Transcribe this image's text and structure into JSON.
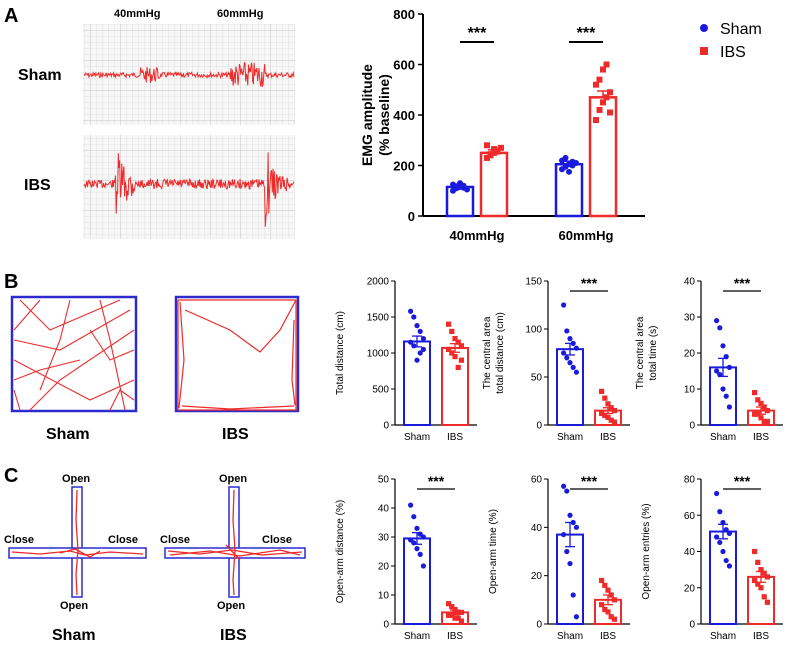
{
  "panels": {
    "a": "A",
    "b": "B",
    "c": "C"
  },
  "emg": {
    "pressure_labels": [
      "40mmHg",
      "60mmHg"
    ],
    "row_labels": [
      "Sham",
      "IBS"
    ]
  },
  "of": {
    "labels": [
      "Sham",
      "IBS"
    ]
  },
  "epm": {
    "arm_open": "Open",
    "arm_close": "Close",
    "labels": [
      "Sham",
      "IBS"
    ]
  },
  "colors": {
    "sham": "#1a1adc",
    "ibs": "#ee2a2a"
  },
  "chart_data": [
    {
      "id": "emg_bar",
      "type": "bar",
      "title": "",
      "ylabel_lines": [
        "EMG amplitude",
        "(% baseline)"
      ],
      "xlabel": "",
      "categories": [
        "40mmHg",
        "60mmHg"
      ],
      "series": [
        {
          "name": "Sham",
          "values": [
            115,
            205
          ],
          "sem": [
            10,
            12
          ],
          "points": [
            [
              100,
              110,
              115,
              120,
              105,
              125,
              118,
              130,
              112
            ],
            [
              185,
              195,
              205,
              200,
              210,
              220,
              230,
              175,
              215
            ]
          ]
        },
        {
          "name": "IBS",
          "values": [
            250,
            470
          ],
          "sem": [
            12,
            25
          ],
          "points": [
            [
              230,
              240,
              250,
              260,
              270,
              280,
              245,
              265,
              255
            ],
            [
              380,
              420,
              450,
              470,
              490,
              520,
              540,
              580,
              600,
              410
            ]
          ]
        }
      ],
      "yticks": [
        "0",
        "200",
        "400",
        "600",
        "800"
      ],
      "ylim": [
        0,
        800
      ],
      "significance": [
        "***",
        "***"
      ],
      "legend": {
        "position": "right",
        "entries": [
          "Sham",
          "IBS"
        ]
      }
    },
    {
      "id": "b_total_distance",
      "type": "bar",
      "ylabel_lines": [
        "Total distance (cm)"
      ],
      "categories": [
        "Sham",
        "IBS"
      ],
      "values": [
        1160,
        1070
      ],
      "sem": [
        75,
        60
      ],
      "points": [
        [
          1580,
          1500,
          1380,
          1300,
          1200,
          1150,
          1100,
          900,
          1000,
          1050
        ],
        [
          1400,
          1300,
          1200,
          1150,
          1100,
          1050,
          1000,
          950,
          800,
          900
        ]
      ],
      "yticks": [
        "0",
        "500",
        "1000",
        "1500",
        "2000"
      ],
      "ylim": [
        0,
        2000
      ],
      "significance": ""
    },
    {
      "id": "b_central_distance",
      "type": "bar",
      "ylabel_lines": [
        "The central area",
        "total distance (cm)"
      ],
      "categories": [
        "Sham",
        "IBS"
      ],
      "values": [
        79,
        15
      ],
      "sem": [
        6,
        3
      ],
      "points": [
        [
          125,
          98,
          90,
          85,
          80,
          75,
          70,
          65,
          60,
          55
        ],
        [
          35,
          28,
          22,
          18,
          15,
          12,
          10,
          8,
          5,
          3
        ]
      ],
      "yticks": [
        "0",
        "50",
        "100",
        "150"
      ],
      "ylim": [
        0,
        150
      ],
      "significance": "***"
    },
    {
      "id": "b_central_time",
      "type": "bar",
      "ylabel_lines": [
        "The central area",
        "total time (s)"
      ],
      "categories": [
        "Sham",
        "IBS"
      ],
      "values": [
        16,
        4
      ],
      "sem": [
        2.5,
        1
      ],
      "points": [
        [
          29,
          27,
          22,
          19,
          16,
          15,
          14,
          10,
          8,
          5
        ],
        [
          9,
          7,
          6,
          5,
          4,
          3,
          3,
          2,
          1,
          1
        ]
      ],
      "yticks": [
        "0",
        "10",
        "20",
        "30",
        "40"
      ],
      "ylim": [
        0,
        40
      ],
      "significance": "***"
    },
    {
      "id": "c_open_distance",
      "type": "bar",
      "ylabel_lines": [
        "Open-arm distance (%)"
      ],
      "categories": [
        "Sham",
        "IBS"
      ],
      "values": [
        29.5,
        4
      ],
      "sem": [
        2,
        0.8
      ],
      "points": [
        [
          41,
          37,
          33,
          31,
          30,
          29,
          28,
          26,
          24,
          20
        ],
        [
          7,
          6,
          5,
          4,
          4,
          3,
          3,
          2,
          2,
          1
        ]
      ],
      "yticks": [
        "0",
        "10",
        "20",
        "30",
        "40",
        "50"
      ],
      "ylim": [
        0,
        50
      ],
      "significance": "***"
    },
    {
      "id": "c_open_time",
      "type": "bar",
      "ylabel_lines": [
        "Open-arm time (%)"
      ],
      "categories": [
        "Sham",
        "IBS"
      ],
      "values": [
        37,
        10
      ],
      "sem": [
        5,
        2
      ],
      "points": [
        [
          57,
          55,
          45,
          42,
          40,
          37,
          30,
          25,
          12,
          3
        ],
        [
          18,
          16,
          14,
          12,
          10,
          8,
          6,
          5,
          3,
          2
        ]
      ],
      "yticks": [
        "0",
        "20",
        "40",
        "60"
      ],
      "ylim": [
        0,
        60
      ],
      "significance": "***"
    },
    {
      "id": "c_open_entries",
      "type": "bar",
      "ylabel_lines": [
        "Open-arm entries (%)"
      ],
      "categories": [
        "Sham",
        "IBS"
      ],
      "values": [
        51,
        26
      ],
      "sem": [
        4,
        3
      ],
      "points": [
        [
          72,
          62,
          56,
          52,
          50,
          48,
          45,
          40,
          35,
          32
        ],
        [
          40,
          34,
          30,
          28,
          26,
          24,
          22,
          20,
          15,
          12
        ]
      ],
      "yticks": [
        "0",
        "20",
        "40",
        "60",
        "80"
      ],
      "ylim": [
        0,
        80
      ],
      "significance": "***"
    }
  ]
}
